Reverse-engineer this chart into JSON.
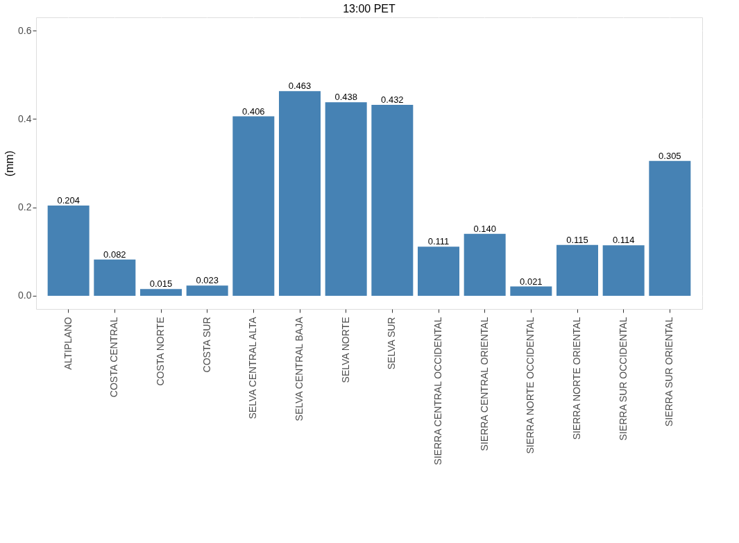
{
  "chart_data": {
    "type": "bar",
    "title": "13:00 PET",
    "ylabel": "(mm)",
    "categories": [
      "ALTIPLANO",
      "COSTA CENTRAL",
      "COSTA NORTE",
      "COSTA SUR",
      "SELVA CENTRAL ALTA",
      "SELVA CENTRAL BAJA",
      "SELVA NORTE",
      "SELVA SUR",
      "SIERRA CENTRAL OCCIDENTAL",
      "SIERRA CENTRAL ORIENTAL",
      "SIERRA NORTE OCCIDENTAL",
      "SIERRA NORTE ORIENTAL",
      "SIERRA SUR OCCIDENTAL",
      "SIERRA SUR ORIENTAL"
    ],
    "values": [
      0.204,
      0.082,
      0.015,
      0.023,
      0.406,
      0.463,
      0.438,
      0.432,
      0.111,
      0.14,
      0.021,
      0.115,
      0.114,
      0.305
    ],
    "value_labels": [
      "0.204",
      "0.082",
      "0.015",
      "0.023",
      "0.406",
      "0.463",
      "0.438",
      "0.432",
      "0.111",
      "0.140",
      "0.021",
      "0.115",
      "0.114",
      "0.305"
    ],
    "color": "#4682b4",
    "ylim": [
      -0.03,
      0.63
    ],
    "yticks": [
      {
        "value": 0,
        "label": "0.0"
      },
      {
        "value": 0.2,
        "label": "0.2"
      },
      {
        "value": 0.4,
        "label": "0.4"
      },
      {
        "value": 0.6,
        "label": "0.6"
      }
    ],
    "grid": true
  }
}
